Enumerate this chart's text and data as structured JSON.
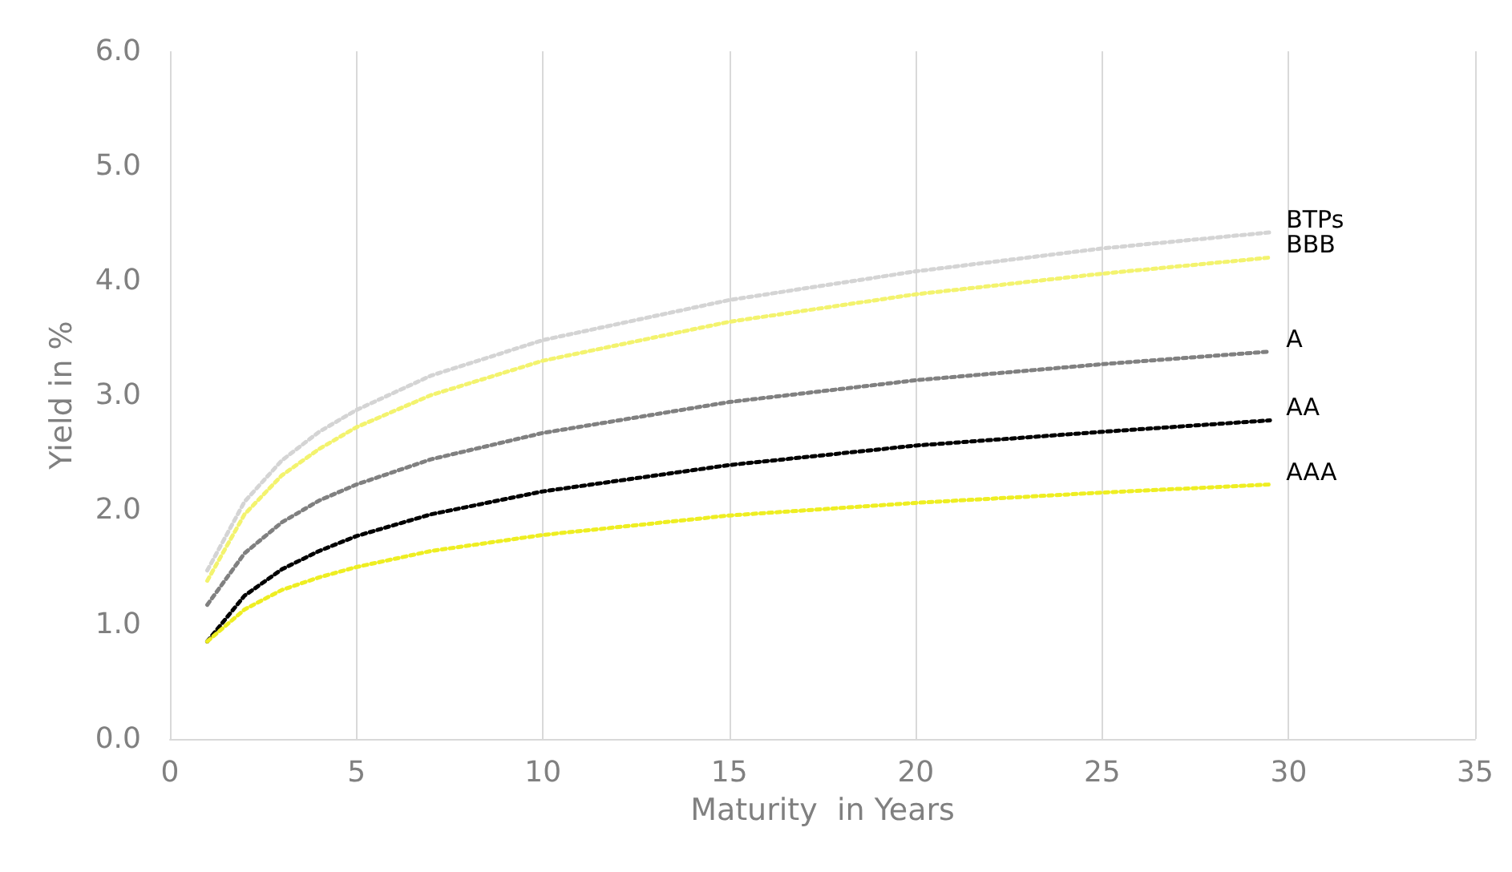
{
  "chart_data": {
    "type": "line",
    "xlabel": "Maturity  in Years",
    "ylabel": "Yield in %",
    "x": [
      1,
      2,
      3,
      4,
      5,
      7,
      10,
      15,
      20,
      25,
      29.5
    ],
    "series": [
      {
        "name": "BTPs",
        "color": "#d4d4d4",
        "values": [
          1.47,
          2.07,
          2.43,
          2.68,
          2.87,
          3.17,
          3.48,
          3.83,
          4.08,
          4.28,
          4.42
        ]
      },
      {
        "name": "BBB",
        "color": "#f3f36e",
        "values": [
          1.38,
          1.96,
          2.3,
          2.53,
          2.72,
          3.0,
          3.3,
          3.64,
          3.88,
          4.06,
          4.2
        ]
      },
      {
        "name": "A",
        "color": "#808080",
        "values": [
          1.17,
          1.62,
          1.89,
          2.08,
          2.22,
          2.44,
          2.67,
          2.94,
          3.13,
          3.27,
          3.38
        ]
      },
      {
        "name": "AA",
        "color": "#000000",
        "values": [
          0.85,
          1.25,
          1.48,
          1.64,
          1.77,
          1.96,
          2.16,
          2.39,
          2.56,
          2.68,
          2.78
        ]
      },
      {
        "name": "AAA",
        "color": "#eeee22",
        "values": [
          0.85,
          1.13,
          1.3,
          1.41,
          1.5,
          1.64,
          1.78,
          1.95,
          2.06,
          2.15,
          2.22
        ]
      }
    ],
    "xlim": [
      0,
      35
    ],
    "xticks": [
      0,
      5,
      10,
      15,
      20,
      25,
      30,
      35
    ],
    "ylim": [
      0,
      6
    ],
    "yticks": [
      {
        "value": 0,
        "label": "0.0"
      },
      {
        "value": 1,
        "label": "1.0"
      },
      {
        "value": 2,
        "label": "2.0"
      },
      {
        "value": 3,
        "label": "3.0"
      },
      {
        "value": 4,
        "label": "4.0"
      },
      {
        "value": 5,
        "label": "5.0"
      },
      {
        "value": 6,
        "label": "6.0"
      }
    ],
    "grid": "x",
    "marker": "none",
    "line_style": "dotted"
  }
}
